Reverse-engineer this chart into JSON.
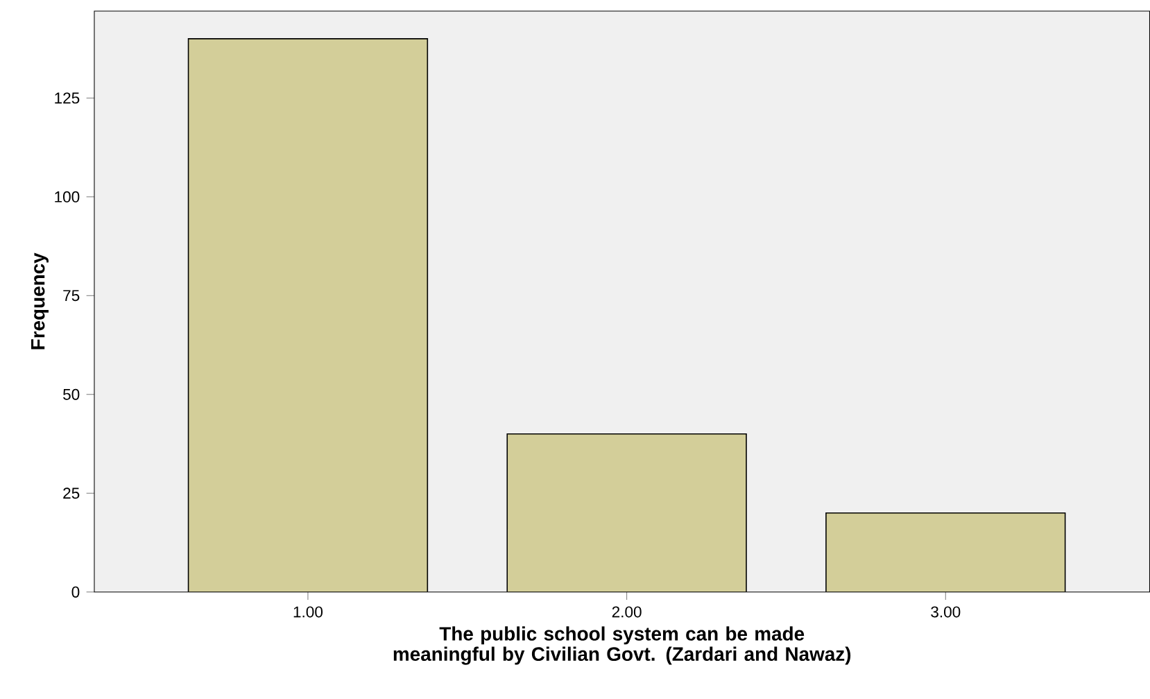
{
  "chart_data": {
    "type": "bar",
    "xlabel": "The public school system can be made meaningful by Civilian Govt. (Zardari and Nawaz)",
    "ylabel": "Frequency",
    "categories": [
      "1.00",
      "2.00",
      "3.00"
    ],
    "values": [
      140,
      40,
      20
    ],
    "color": "#d3ce99",
    "ylim": [
      0,
      147
    ],
    "yticks": [
      0,
      25,
      50,
      75,
      100,
      125
    ]
  }
}
